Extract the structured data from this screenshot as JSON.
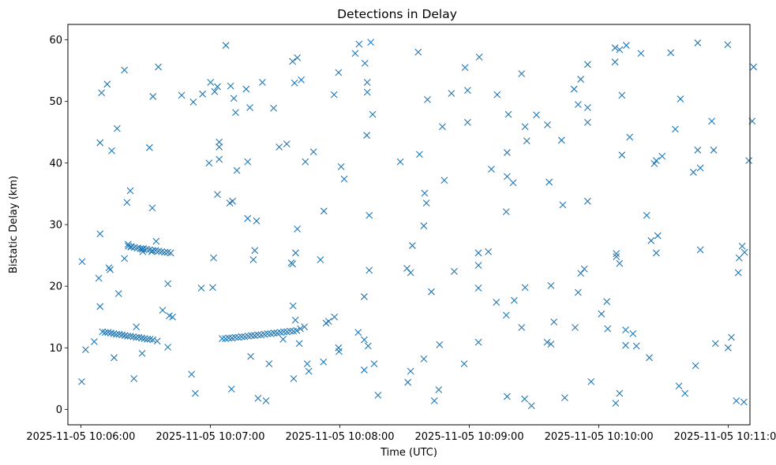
{
  "chart_data": {
    "type": "scatter",
    "title": "Detections in Delay",
    "xlabel": "Time (UTC)",
    "ylabel": "Bistatic Delay (km)",
    "x_unit": "seconds since 2025-11-05 10:06:00 UTC",
    "xlim": [
      -6,
      310
    ],
    "ylim": [
      -2.5,
      62.5
    ],
    "grid": false,
    "marker": "x",
    "color": "#1f77b4",
    "x_ticks": [
      {
        "value": 0,
        "label": "2025-11-05 10:06:00"
      },
      {
        "value": 60,
        "label": "2025-11-05 10:07:00"
      },
      {
        "value": 120,
        "label": "2025-11-05 10:08:00"
      },
      {
        "value": 180,
        "label": "2025-11-05 10:09:00"
      },
      {
        "value": 240,
        "label": "2025-11-05 10:10:00"
      },
      {
        "value": 300,
        "label": "2025-11-05 10:11:00"
      }
    ],
    "y_ticks": [
      {
        "value": 0,
        "label": "0"
      },
      {
        "value": 10,
        "label": "10"
      },
      {
        "value": 20,
        "label": "20"
      },
      {
        "value": 30,
        "label": "30"
      },
      {
        "value": 40,
        "label": "40"
      },
      {
        "value": 50,
        "label": "50"
      },
      {
        "value": 60,
        "label": "60"
      }
    ],
    "series": [
      {
        "name": "detections",
        "points": [
          [
            0.4,
            4.5
          ],
          [
            0.6,
            24
          ],
          [
            2.2,
            9.7
          ],
          [
            6.2,
            11
          ],
          [
            8.3,
            21.3
          ],
          [
            8.9,
            16.7
          ],
          [
            8.9,
            28.5
          ],
          [
            8.9,
            43.3
          ],
          [
            9.6,
            51.4
          ],
          [
            12.2,
            52.8
          ],
          [
            13,
            23
          ],
          [
            13.6,
            22.7
          ],
          [
            14.3,
            42
          ],
          [
            15.4,
            8.4
          ],
          [
            16.8,
            45.6
          ],
          [
            17.5,
            18.8
          ],
          [
            20.2,
            24.5
          ],
          [
            20.2,
            55.1
          ],
          [
            21.4,
            33.6
          ],
          [
            21.9,
            26.8
          ],
          [
            22.9,
            35.5
          ],
          [
            23.1,
            26.4
          ],
          [
            24.6,
            5
          ],
          [
            25.7,
            13.4
          ],
          [
            28.4,
            9.1
          ],
          [
            28.4,
            26
          ],
          [
            28.7,
            25.6
          ],
          [
            31.8,
            42.5
          ],
          [
            32.9,
            25.6
          ],
          [
            33.1,
            32.7
          ],
          [
            33.4,
            50.8
          ],
          [
            34.9,
            27.3
          ],
          [
            35.4,
            11.1
          ],
          [
            35.9,
            55.6
          ],
          [
            37.9,
            16.1
          ],
          [
            40.3,
            20.4
          ],
          [
            40.3,
            10.1
          ],
          [
            41,
            15.2
          ],
          [
            42.5,
            15
          ],
          [
            46.7,
            51
          ],
          [
            51.3,
            5.7
          ],
          [
            52.1,
            49.9
          ],
          [
            53,
            2.6
          ],
          [
            55.8,
            19.7
          ],
          [
            56.4,
            51.2
          ],
          [
            59.4,
            40
          ],
          [
            60.1,
            53.1
          ],
          [
            61.1,
            19.8
          ],
          [
            61.5,
            24.6
          ],
          [
            62,
            51.6
          ],
          [
            63.3,
            34.9
          ],
          [
            63.3,
            52.4
          ],
          [
            64.1,
            40.6
          ],
          [
            64.1,
            42.6
          ],
          [
            64.1,
            43.4
          ],
          [
            67.2,
            59.1
          ],
          [
            69,
            33.5
          ],
          [
            69.4,
            52.5
          ],
          [
            69.8,
            3.3
          ],
          [
            70.3,
            33.8
          ],
          [
            70.9,
            50.5
          ],
          [
            71.7,
            48.2
          ],
          [
            72.3,
            38.8
          ],
          [
            76.6,
            52
          ],
          [
            77.3,
            31
          ],
          [
            77.3,
            40.2
          ],
          [
            78.3,
            49
          ],
          [
            78.7,
            8.6
          ],
          [
            79.9,
            24.3
          ],
          [
            80.6,
            25.8
          ],
          [
            81.4,
            30.6
          ],
          [
            82.1,
            1.8
          ],
          [
            84.1,
            53.1
          ],
          [
            85.8,
            1.4
          ],
          [
            87.2,
            7.4
          ],
          [
            89.3,
            48.9
          ],
          [
            91.9,
            42.6
          ],
          [
            93.7,
            11.4
          ],
          [
            95.4,
            43.1
          ],
          [
            97.5,
            23.8
          ],
          [
            98.1,
            56.5
          ],
          [
            98.1,
            23.6
          ],
          [
            98.3,
            16.8
          ],
          [
            98.6,
            5
          ],
          [
            99,
            53
          ],
          [
            99.4,
            14.5
          ],
          [
            99.5,
            25.4
          ],
          [
            100.3,
            57.1
          ],
          [
            100.3,
            29.3
          ],
          [
            101.2,
            10.7
          ],
          [
            101.7,
            13.1
          ],
          [
            102.1,
            53.5
          ],
          [
            103.6,
            13.4
          ],
          [
            104,
            40.2
          ],
          [
            104.9,
            7.4
          ],
          [
            105.6,
            6.2
          ],
          [
            107.8,
            41.8
          ],
          [
            111,
            24.3
          ],
          [
            112.4,
            7.7
          ],
          [
            112.6,
            32.2
          ],
          [
            113.6,
            14
          ],
          [
            114.8,
            14.3
          ],
          [
            117.3,
            51.1
          ],
          [
            117.5,
            15
          ],
          [
            119.4,
            10
          ],
          [
            119.4,
            54.7
          ],
          [
            119.6,
            9.4
          ],
          [
            120.6,
            39.4
          ],
          [
            122,
            37.4
          ],
          [
            127.1,
            57.8
          ],
          [
            128.5,
            12.5
          ],
          [
            128.9,
            59.3
          ],
          [
            131.3,
            11.3
          ],
          [
            131.3,
            6.4
          ],
          [
            131.3,
            18.3
          ],
          [
            131.6,
            56.2
          ],
          [
            132.5,
            44.5
          ],
          [
            132.7,
            53.1
          ],
          [
            132.7,
            51.5
          ],
          [
            133.1,
            10.3
          ],
          [
            133.6,
            22.6
          ],
          [
            133.6,
            31.5
          ],
          [
            134.3,
            59.6
          ],
          [
            135.2,
            47.9
          ],
          [
            135.9,
            7.4
          ],
          [
            137.7,
            2.3
          ],
          [
            148,
            40.2
          ],
          [
            151.1,
            22.9
          ],
          [
            151.5,
            4.4
          ],
          [
            152.8,
            22.2
          ],
          [
            152.8,
            6.2
          ],
          [
            153.6,
            26.6
          ],
          [
            156.3,
            58
          ],
          [
            156.9,
            41.4
          ],
          [
            158.9,
            8.2
          ],
          [
            158.9,
            29.8
          ],
          [
            159.3,
            35.1
          ],
          [
            160.1,
            33.5
          ],
          [
            160.6,
            50.3
          ],
          [
            162.4,
            19.1
          ],
          [
            163.8,
            1.4
          ],
          [
            165.8,
            3.2
          ],
          [
            166.2,
            10.5
          ],
          [
            167.5,
            45.9
          ],
          [
            168.4,
            37.2
          ],
          [
            171.7,
            51.3
          ],
          [
            173,
            22.4
          ],
          [
            177.6,
            7.4
          ],
          [
            178,
            55.5
          ],
          [
            179.2,
            51.8
          ],
          [
            179.2,
            46.6
          ],
          [
            184.2,
            10.9
          ],
          [
            184.2,
            19.7
          ],
          [
            184.2,
            23.4
          ],
          [
            184.2,
            25.4
          ],
          [
            184.6,
            57.2
          ],
          [
            188.8,
            25.6
          ],
          [
            190.2,
            39
          ],
          [
            192.5,
            17.4
          ],
          [
            192.9,
            51.1
          ],
          [
            197.1,
            15.3
          ],
          [
            197.1,
            32.1
          ],
          [
            197.5,
            37.8
          ],
          [
            197.5,
            41.7
          ],
          [
            197.5,
            2.1
          ],
          [
            198.1,
            47.9
          ],
          [
            200.3,
            36.8
          ],
          [
            200.8,
            17.7
          ],
          [
            204.2,
            54.5
          ],
          [
            204.2,
            13.3
          ],
          [
            205.6,
            1.7
          ],
          [
            205.8,
            19.8
          ],
          [
            205.8,
            45.9
          ],
          [
            206.6,
            43.6
          ],
          [
            208.8,
            0.6
          ],
          [
            211.1,
            47.8
          ],
          [
            216,
            10.9
          ],
          [
            216.2,
            46.2
          ],
          [
            217,
            36.9
          ],
          [
            217.8,
            10.6
          ],
          [
            217.8,
            20.1
          ],
          [
            219.2,
            14.2
          ],
          [
            222.7,
            43.7
          ],
          [
            223.3,
            33.2
          ],
          [
            224.2,
            1.9
          ],
          [
            228.5,
            52
          ],
          [
            229,
            13.3
          ],
          [
            230.4,
            49.5
          ],
          [
            230.4,
            19
          ],
          [
            231.6,
            22.1
          ],
          [
            231.6,
            53.6
          ],
          [
            233.3,
            22.8
          ],
          [
            234.8,
            56
          ],
          [
            234.8,
            33.8
          ],
          [
            234.8,
            46.6
          ],
          [
            234.8,
            49
          ],
          [
            236.4,
            4.5
          ],
          [
            241.2,
            15.5
          ],
          [
            243.7,
            17.5
          ],
          [
            244.1,
            13.1
          ],
          [
            247.5,
            56.4
          ],
          [
            247.5,
            58.7
          ],
          [
            247.8,
            1
          ],
          [
            248.1,
            25.3
          ],
          [
            248.1,
            24.8
          ],
          [
            249.6,
            23.7
          ],
          [
            249.6,
            58.4
          ],
          [
            249.6,
            2.6
          ],
          [
            250.7,
            51
          ],
          [
            250.7,
            41.3
          ],
          [
            252.4,
            12.9
          ],
          [
            252.4,
            10.4
          ],
          [
            252.7,
            59.1
          ],
          [
            254.3,
            44.2
          ],
          [
            255.8,
            12.3
          ],
          [
            257.4,
            10.3
          ],
          [
            259.5,
            57.8
          ],
          [
            262.2,
            31.5
          ],
          [
            263.4,
            8.4
          ],
          [
            264.2,
            27.4
          ],
          [
            265.7,
            39.9
          ],
          [
            266.6,
            40.4
          ],
          [
            266.6,
            25.4
          ],
          [
            267.3,
            28.2
          ],
          [
            269.3,
            41.1
          ],
          [
            273.3,
            57.9
          ],
          [
            275.4,
            45.5
          ],
          [
            277.1,
            3.8
          ],
          [
            277.8,
            50.4
          ],
          [
            279.9,
            2.6
          ],
          [
            283.8,
            38.5
          ],
          [
            284.8,
            7.1
          ],
          [
            285.8,
            42.1
          ],
          [
            285.8,
            59.5
          ],
          [
            287,
            39.2
          ],
          [
            287,
            25.9
          ],
          [
            292.3,
            46.8
          ],
          [
            293.2,
            42.1
          ],
          [
            294,
            10.7
          ],
          [
            299.7,
            59.2
          ],
          [
            299.9,
            10
          ],
          [
            301.4,
            11.7
          ],
          [
            303.7,
            1.4
          ],
          [
            304.6,
            22.2
          ],
          [
            305,
            24.6
          ],
          [
            306.4,
            26.5
          ],
          [
            307.2,
            1.2
          ],
          [
            307.5,
            25.5
          ],
          [
            309.5,
            40.4
          ],
          [
            311,
            46.8
          ],
          [
            311.7,
            55.6
          ],
          [
            10,
            12.6
          ],
          [
            11.3,
            12.5
          ],
          [
            12.6,
            12.5
          ],
          [
            13.9,
            12.4
          ],
          [
            15.2,
            12.3
          ],
          [
            16.5,
            12.2
          ],
          [
            17.8,
            12.2
          ],
          [
            19.1,
            12.1
          ],
          [
            20.4,
            12
          ],
          [
            21.7,
            11.9
          ],
          [
            23,
            11.9
          ],
          [
            24.3,
            11.8
          ],
          [
            25.6,
            11.7
          ],
          [
            26.9,
            11.7
          ],
          [
            28.2,
            11.6
          ],
          [
            29.5,
            11.5
          ],
          [
            30.8,
            11.4
          ],
          [
            32.1,
            11.4
          ],
          [
            33.4,
            11.3
          ],
          [
            22,
            26.5
          ],
          [
            23.4,
            26.4
          ],
          [
            24.8,
            26.3
          ],
          [
            26.2,
            26.2
          ],
          [
            27.6,
            26.1
          ],
          [
            29,
            26.1
          ],
          [
            30.4,
            26
          ],
          [
            31.8,
            25.9
          ],
          [
            33.2,
            25.8
          ],
          [
            34.6,
            25.8
          ],
          [
            36,
            25.7
          ],
          [
            37.4,
            25.6
          ],
          [
            38.8,
            25.5
          ],
          [
            40.2,
            25.5
          ],
          [
            41.6,
            25.4
          ],
          [
            65.5,
            11.5
          ],
          [
            67,
            11.5
          ],
          [
            68.5,
            11.6
          ],
          [
            70,
            11.6
          ],
          [
            71.5,
            11.7
          ],
          [
            73,
            11.7
          ],
          [
            74.5,
            11.8
          ],
          [
            76,
            11.8
          ],
          [
            77.5,
            11.9
          ],
          [
            79,
            12
          ],
          [
            80.5,
            12
          ],
          [
            82,
            12.1
          ],
          [
            83.5,
            12.1
          ],
          [
            85,
            12.2
          ],
          [
            86.5,
            12.3
          ],
          [
            88,
            12.3
          ],
          [
            89.5,
            12.4
          ],
          [
            91,
            12.4
          ],
          [
            92.5,
            12.5
          ],
          [
            94,
            12.6
          ],
          [
            95.5,
            12.6
          ],
          [
            97,
            12.7
          ],
          [
            98.5,
            12.7
          ],
          [
            100,
            12.8
          ]
        ]
      }
    ]
  }
}
